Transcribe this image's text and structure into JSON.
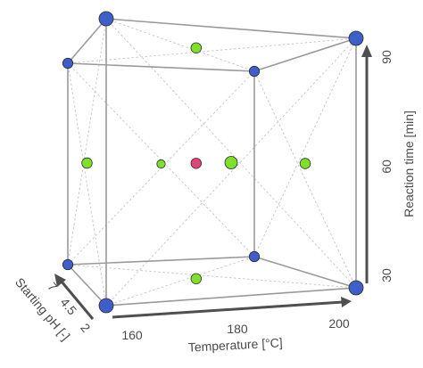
{
  "axes": {
    "temperature": {
      "label": "Temperature [°C]",
      "ticks": [
        "160",
        "180",
        "200"
      ]
    },
    "reaction_time": {
      "label": "Reaction time [min]",
      "ticks": [
        "30",
        "60",
        "90"
      ]
    },
    "starting_ph": {
      "label": "Starting pH [-]",
      "ticks": [
        "2",
        "4.5",
        "7"
      ]
    }
  },
  "colors": {
    "corner_point": "#3e5fc9",
    "axial_point": "#7ee02a",
    "center_point": "#e0457a"
  },
  "points": [
    {
      "kind": "corner",
      "temperature": 160,
      "ph": 2,
      "time": 30
    },
    {
      "kind": "corner",
      "temperature": 200,
      "ph": 2,
      "time": 30
    },
    {
      "kind": "corner",
      "temperature": 160,
      "ph": 7,
      "time": 30
    },
    {
      "kind": "corner",
      "temperature": 200,
      "ph": 7,
      "time": 30
    },
    {
      "kind": "corner",
      "temperature": 160,
      "ph": 2,
      "time": 90
    },
    {
      "kind": "corner",
      "temperature": 200,
      "ph": 2,
      "time": 90
    },
    {
      "kind": "corner",
      "temperature": 160,
      "ph": 7,
      "time": 90
    },
    {
      "kind": "corner",
      "temperature": 200,
      "ph": 7,
      "time": 90
    },
    {
      "kind": "axial",
      "temperature": 160,
      "ph": 4.5,
      "time": 60
    },
    {
      "kind": "axial",
      "temperature": 200,
      "ph": 4.5,
      "time": 60
    },
    {
      "kind": "axial",
      "temperature": 180,
      "ph": 2,
      "time": 60
    },
    {
      "kind": "axial",
      "temperature": 180,
      "ph": 7,
      "time": 60
    },
    {
      "kind": "axial",
      "temperature": 180,
      "ph": 4.5,
      "time": 30
    },
    {
      "kind": "axial",
      "temperature": 180,
      "ph": 4.5,
      "time": 90
    },
    {
      "kind": "center",
      "temperature": 180,
      "ph": 4.5,
      "time": 60
    }
  ]
}
